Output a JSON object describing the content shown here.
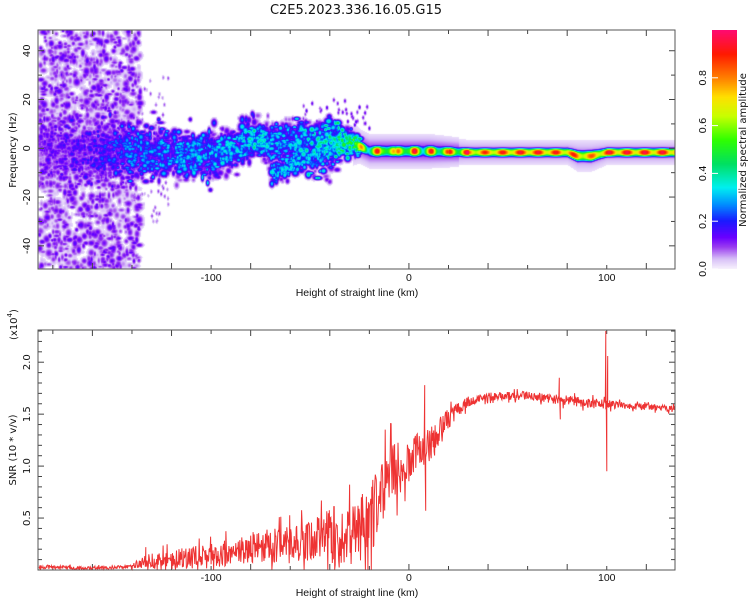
{
  "title": "C2E5.2023.336.16.05.G15",
  "chart_data": [
    {
      "type": "heatmap",
      "name": "spectrogram",
      "xlabel": "Height of straight line (km)",
      "ylabel": "Frequency (Hz)",
      "xlim": [
        -187.5,
        134.5
      ],
      "ylim": [
        -49.5,
        48.5
      ],
      "xticks": [
        -100,
        0,
        100
      ],
      "xtick_labels": [
        "-100",
        "0",
        "100"
      ],
      "yticks": [
        40,
        20,
        0,
        -20,
        -40
      ],
      "ytick_labels": [
        "40",
        "20",
        "0",
        "-20",
        "-40"
      ],
      "colorbar": {
        "label": "Normalized spectral amplitude",
        "range": [
          0,
          1
        ],
        "ticks": [
          0.0,
          0.2,
          0.4,
          0.6,
          0.8
        ],
        "tick_labels": [
          "0.0",
          "0.2",
          "0.4",
          "0.6",
          "0.8"
        ],
        "colors": [
          "#f6f0fd",
          "#d8c0f7",
          "#9a3cf0",
          "#6a00ff",
          "#1a1aff",
          "#0090ff",
          "#00f0f0",
          "#00e060",
          "#30ff00",
          "#c8ff00",
          "#ffe000",
          "#ff8000",
          "#ff1a00",
          "#ff0a70"
        ],
        "color_positions": [
          0.0,
          0.04,
          0.09,
          0.13,
          0.2,
          0.27,
          0.34,
          0.44,
          0.54,
          0.64,
          0.72,
          0.8,
          0.9,
          1.0
        ]
      },
      "ridge": {
        "height_km": [
          -187,
          -160,
          -140,
          -120,
          -100,
          -90,
          -80,
          -70,
          -60,
          -50,
          -40,
          -32,
          -25,
          -20,
          -10,
          0,
          10,
          30,
          60,
          80,
          85,
          92,
          100,
          134
        ],
        "center_hz": [
          0,
          -2,
          -1,
          -2,
          -2,
          0,
          4,
          3,
          2,
          1,
          2,
          3,
          1,
          -1,
          -1,
          -1,
          -1,
          -1.5,
          -1.5,
          -1.5,
          -3,
          -3,
          -1.5,
          -1.5
        ],
        "amplitude": [
          0.15,
          0.2,
          0.3,
          0.33,
          0.35,
          0.35,
          0.42,
          0.35,
          0.35,
          0.4,
          0.42,
          0.5,
          0.62,
          0.78,
          0.82,
          0.82,
          0.75,
          0.88,
          0.97,
          0.92,
          0.92,
          0.85,
          0.97,
          0.97
        ],
        "spread_hz": [
          8,
          7,
          6,
          5,
          5,
          4,
          4,
          4,
          5,
          5,
          6,
          3,
          2,
          2,
          2,
          2,
          2,
          1.6,
          1.6,
          1.6,
          2,
          2,
          1.6,
          1.6
        ]
      },
      "branch": {
        "height_km": [
          -70,
          -35
        ],
        "center_hz": [
          -11,
          2
        ],
        "amplitude": 0.35
      },
      "noise_region": {
        "height_km": [
          -187,
          -140
        ],
        "amplitude": 0.15
      }
    },
    {
      "type": "line",
      "name": "snr",
      "xlabel": "Height of straight line (km)",
      "ylabel": "SNR (10 * v/v)",
      "scale_label": "(x10",
      "scale_exp": "4",
      "scale_close": ")",
      "xlim": [
        -187.5,
        134.5
      ],
      "ylim": [
        0,
        2.31
      ],
      "xticks": [
        -100,
        0,
        100
      ],
      "xtick_labels": [
        "-100",
        "0",
        "100"
      ],
      "yticks": [
        0.5,
        1.0,
        1.5,
        2.0
      ],
      "ytick_labels": [
        "0.5",
        "1.0",
        "1.5",
        "2.0"
      ],
      "color": "#ee3333",
      "series": {
        "x": [
          -187,
          -160,
          -140,
          -135,
          -120,
          -100,
          -80,
          -60,
          -45,
          -35,
          -28,
          -20,
          -10,
          0,
          10,
          20,
          30,
          40,
          60,
          80,
          95,
          110,
          134
        ],
        "mean": [
          0.03,
          0.02,
          0.03,
          0.08,
          0.1,
          0.13,
          0.22,
          0.24,
          0.3,
          0.35,
          0.32,
          0.5,
          0.9,
          1.05,
          1.2,
          1.45,
          1.62,
          1.67,
          1.68,
          1.63,
          1.6,
          1.58,
          1.55
        ],
        "spread": [
          0.02,
          0.015,
          0.02,
          0.06,
          0.1,
          0.12,
          0.15,
          0.18,
          0.22,
          0.33,
          0.3,
          0.38,
          0.32,
          0.2,
          0.22,
          0.1,
          0.05,
          0.04,
          0.04,
          0.05,
          0.05,
          0.03,
          0.03
        ]
      },
      "spikes": [
        {
          "x": -133,
          "y": 0.22
        },
        {
          "x": 8,
          "y": 1.78
        },
        {
          "x": 8.5,
          "y": 0.57
        },
        {
          "x": 76,
          "y": 1.85
        },
        {
          "x": 76.5,
          "y": 1.45
        },
        {
          "x": 99.5,
          "y": 2.3
        },
        {
          "x": 100,
          "y": 0.95
        },
        {
          "x": 100.5,
          "y": 2.06
        }
      ]
    }
  ]
}
